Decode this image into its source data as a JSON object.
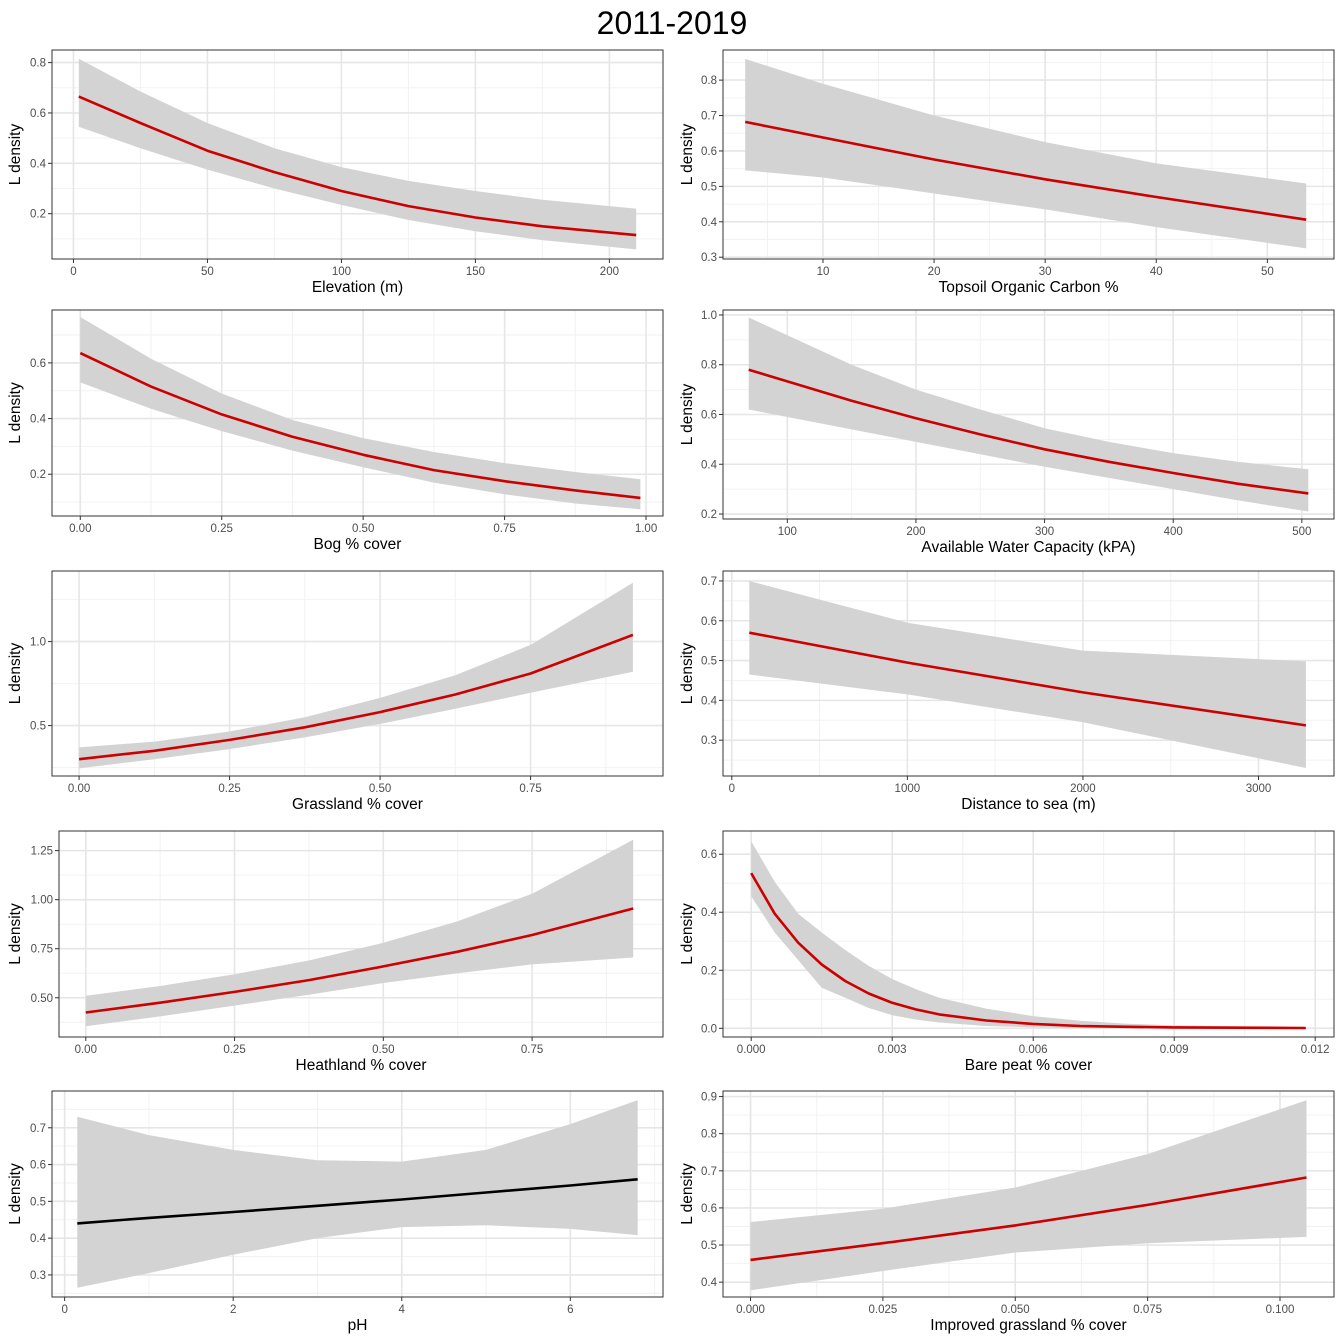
{
  "title": "2011-2019",
  "colors": {
    "line_red": "#cc0000",
    "line_black": "#000000",
    "ribbon": "#d3d3d3",
    "grid_major": "#e6e6e6",
    "grid_minor": "#f2f2f2",
    "panel_border": "#333333",
    "tick_text": "#4d4d4d"
  },
  "chart_data": [
    {
      "type": "line",
      "xlabel": "Elevation (m)",
      "ylabel": "L density",
      "xlim": [
        -8,
        220
      ],
      "ylim": [
        0.02,
        0.85
      ],
      "xticks": [
        0,
        50,
        100,
        150,
        200
      ],
      "xtick_labels": [
        "0",
        "50",
        "100",
        "150",
        "200"
      ],
      "yticks": [
        0.2,
        0.4,
        0.6,
        0.8
      ],
      "ytick_labels": [
        "0.2",
        "0.4",
        "0.6",
        "0.8"
      ],
      "line_color": "red",
      "x": [
        2,
        25,
        50,
        75,
        100,
        125,
        150,
        175,
        210
      ],
      "y": [
        0.665,
        0.56,
        0.45,
        0.365,
        0.29,
        0.23,
        0.185,
        0.15,
        0.115
      ],
      "lower": [
        0.545,
        0.46,
        0.375,
        0.3,
        0.235,
        0.175,
        0.13,
        0.095,
        0.058
      ],
      "upper": [
        0.815,
        0.685,
        0.56,
        0.46,
        0.385,
        0.33,
        0.29,
        0.255,
        0.22
      ]
    },
    {
      "type": "line",
      "xlabel": "Topsoil Organic Carbon %",
      "ylabel": "L density",
      "xlim": [
        1,
        56
      ],
      "ylim": [
        0.295,
        0.885
      ],
      "xticks": [
        10,
        20,
        30,
        40,
        50
      ],
      "xtick_labels": [
        "10",
        "20",
        "30",
        "40",
        "50"
      ],
      "yticks": [
        0.3,
        0.4,
        0.5,
        0.6,
        0.7,
        0.8
      ],
      "ytick_labels": [
        "0.3",
        "0.4",
        "0.5",
        "0.6",
        "0.7",
        "0.8"
      ],
      "line_color": "red",
      "x": [
        3,
        10,
        20,
        30,
        40,
        53.5
      ],
      "y": [
        0.682,
        0.638,
        0.576,
        0.52,
        0.47,
        0.406
      ],
      "lower": [
        0.545,
        0.525,
        0.48,
        0.435,
        0.385,
        0.325
      ],
      "upper": [
        0.86,
        0.79,
        0.7,
        0.625,
        0.565,
        0.508
      ]
    },
    {
      "type": "line",
      "xlabel": "Bog % cover",
      "ylabel": "L density",
      "xlim": [
        -0.05,
        1.03
      ],
      "ylim": [
        0.05,
        0.79
      ],
      "xticks": [
        0,
        0.25,
        0.5,
        0.75,
        1.0
      ],
      "xtick_labels": [
        "0.00",
        "0.25",
        "0.50",
        "0.75",
        "1.00"
      ],
      "yticks": [
        0.2,
        0.4,
        0.6
      ],
      "ytick_labels": [
        "0.2",
        "0.4",
        "0.6"
      ],
      "line_color": "red",
      "x": [
        0,
        0.125,
        0.25,
        0.375,
        0.5,
        0.625,
        0.75,
        0.875,
        0.99
      ],
      "y": [
        0.635,
        0.515,
        0.415,
        0.335,
        0.27,
        0.215,
        0.175,
        0.142,
        0.115
      ],
      "lower": [
        0.53,
        0.435,
        0.355,
        0.285,
        0.225,
        0.17,
        0.128,
        0.095,
        0.074
      ],
      "upper": [
        0.765,
        0.615,
        0.49,
        0.395,
        0.33,
        0.28,
        0.24,
        0.208,
        0.182
      ]
    },
    {
      "type": "line",
      "xlabel": "Available Water Capacity (kPA)",
      "ylabel": "L density",
      "xlim": [
        50,
        525
      ],
      "ylim": [
        0.18,
        1.02
      ],
      "xticks": [
        100,
        200,
        300,
        400,
        500
      ],
      "xtick_labels": [
        "100",
        "200",
        "300",
        "400",
        "500"
      ],
      "yticks": [
        0.2,
        0.4,
        0.6,
        0.8,
        1.0
      ],
      "ytick_labels": [
        "0.2",
        "0.4",
        "0.6",
        "0.8",
        "1.0"
      ],
      "line_color": "red",
      "x": [
        70,
        150,
        200,
        250,
        300,
        350,
        400,
        450,
        505
      ],
      "y": [
        0.78,
        0.655,
        0.585,
        0.52,
        0.46,
        0.41,
        0.365,
        0.322,
        0.283
      ],
      "lower": [
        0.62,
        0.54,
        0.49,
        0.44,
        0.39,
        0.345,
        0.3,
        0.255,
        0.21
      ],
      "upper": [
        0.99,
        0.8,
        0.7,
        0.62,
        0.545,
        0.49,
        0.445,
        0.41,
        0.38
      ]
    },
    {
      "type": "line",
      "xlabel": "Grassland % cover",
      "ylabel": "L density",
      "xlim": [
        -0.045,
        0.97
      ],
      "ylim": [
        0.2,
        1.42
      ],
      "xticks": [
        0,
        0.25,
        0.5,
        0.75
      ],
      "xtick_labels": [
        "0.00",
        "0.25",
        "0.50",
        "0.75"
      ],
      "yticks": [
        0.5,
        1.0
      ],
      "ytick_labels": [
        "0.5",
        "1.0"
      ],
      "line_color": "red",
      "x": [
        0,
        0.125,
        0.25,
        0.375,
        0.5,
        0.625,
        0.75,
        0.92
      ],
      "y": [
        0.3,
        0.35,
        0.415,
        0.49,
        0.58,
        0.685,
        0.81,
        1.04
      ],
      "lower": [
        0.245,
        0.3,
        0.36,
        0.43,
        0.51,
        0.6,
        0.695,
        0.82
      ],
      "upper": [
        0.37,
        0.405,
        0.465,
        0.55,
        0.665,
        0.8,
        0.98,
        1.35
      ]
    },
    {
      "type": "line",
      "xlabel": "Distance to sea (m)",
      "ylabel": "L density",
      "xlim": [
        -50,
        3430
      ],
      "ylim": [
        0.21,
        0.725
      ],
      "xticks": [
        0,
        1000,
        2000,
        3000
      ],
      "xtick_labels": [
        "0",
        "1000",
        "2000",
        "3000"
      ],
      "yticks": [
        0.3,
        0.4,
        0.5,
        0.6,
        0.7
      ],
      "ytick_labels": [
        "0.3",
        "0.4",
        "0.5",
        "0.6",
        "0.7"
      ],
      "line_color": "red",
      "x": [
        100,
        1000,
        2000,
        3270
      ],
      "y": [
        0.57,
        0.495,
        0.42,
        0.337
      ],
      "lower": [
        0.465,
        0.415,
        0.345,
        0.23
      ],
      "upper": [
        0.7,
        0.595,
        0.525,
        0.498
      ]
    },
    {
      "type": "line",
      "xlabel": "Heathland % cover",
      "ylabel": "L density",
      "xlim": [
        -0.045,
        0.97
      ],
      "ylim": [
        0.3,
        1.35
      ],
      "xticks": [
        0,
        0.25,
        0.5,
        0.75
      ],
      "xtick_labels": [
        "0.00",
        "0.25",
        "0.50",
        "0.75"
      ],
      "yticks": [
        0.5,
        0.75,
        1.0,
        1.25
      ],
      "ytick_labels": [
        "0.50",
        "0.75",
        "1.00",
        "1.25"
      ],
      "line_color": "red",
      "x": [
        0,
        0.125,
        0.25,
        0.375,
        0.5,
        0.625,
        0.75,
        0.92
      ],
      "y": [
        0.425,
        0.475,
        0.53,
        0.59,
        0.66,
        0.735,
        0.82,
        0.955
      ],
      "lower": [
        0.355,
        0.405,
        0.46,
        0.515,
        0.575,
        0.625,
        0.67,
        0.705
      ],
      "upper": [
        0.51,
        0.56,
        0.62,
        0.69,
        0.78,
        0.89,
        1.03,
        1.305
      ]
    },
    {
      "type": "line",
      "xlabel": "Bare peat % cover",
      "ylabel": "L density",
      "xlim": [
        -0.0006,
        0.0124
      ],
      "ylim": [
        -0.03,
        0.68
      ],
      "xticks": [
        0,
        0.003,
        0.006,
        0.009,
        0.012
      ],
      "xtick_labels": [
        "0.000",
        "0.003",
        "0.006",
        "0.009",
        "0.012"
      ],
      "yticks": [
        0,
        0.2,
        0.4,
        0.6
      ],
      "ytick_labels": [
        "0.0",
        "0.2",
        "0.4",
        "0.6"
      ],
      "line_color": "red",
      "x": [
        0,
        0.0005,
        0.001,
        0.0015,
        0.002,
        0.0025,
        0.003,
        0.0035,
        0.004,
        0.005,
        0.006,
        0.007,
        0.008,
        0.009,
        0.0118
      ],
      "y": [
        0.535,
        0.395,
        0.295,
        0.22,
        0.163,
        0.12,
        0.088,
        0.065,
        0.048,
        0.027,
        0.015,
        0.008,
        0.005,
        0.003,
        0.001
      ],
      "lower": [
        0.455,
        0.33,
        0.235,
        0.14,
        0.105,
        0.07,
        0.045,
        0.03,
        0.02,
        0.008,
        0.003,
        0.001,
        0.0,
        0.0,
        0.0
      ],
      "upper": [
        0.645,
        0.505,
        0.395,
        0.33,
        0.27,
        0.215,
        0.17,
        0.135,
        0.105,
        0.068,
        0.042,
        0.026,
        0.016,
        0.01,
        0.003
      ]
    },
    {
      "type": "line",
      "xlabel": "pH",
      "ylabel": "L density",
      "xlim": [
        -0.15,
        7.1
      ],
      "ylim": [
        0.24,
        0.8
      ],
      "xticks": [
        0,
        2,
        4,
        6
      ],
      "xtick_labels": [
        "0",
        "2",
        "4",
        "6"
      ],
      "yticks": [
        0.3,
        0.4,
        0.5,
        0.6,
        0.7
      ],
      "ytick_labels": [
        "0.3",
        "0.4",
        "0.5",
        "0.6",
        "0.7"
      ],
      "line_color": "black",
      "x": [
        0.15,
        1,
        2,
        3,
        4,
        5,
        6,
        6.8
      ],
      "y": [
        0.44,
        0.455,
        0.471,
        0.488,
        0.505,
        0.524,
        0.543,
        0.56
      ],
      "lower": [
        0.265,
        0.305,
        0.355,
        0.4,
        0.43,
        0.435,
        0.425,
        0.408
      ],
      "upper": [
        0.73,
        0.68,
        0.64,
        0.612,
        0.608,
        0.64,
        0.71,
        0.775
      ]
    },
    {
      "type": "line",
      "xlabel": "Improved grassland % cover",
      "ylabel": "L density",
      "xlim": [
        -0.0052,
        0.1102
      ],
      "ylim": [
        0.36,
        0.915
      ],
      "xticks": [
        0,
        0.025,
        0.05,
        0.075,
        0.1
      ],
      "xtick_labels": [
        "0.000",
        "0.025",
        "0.050",
        "0.075",
        "0.100"
      ],
      "yticks": [
        0.4,
        0.5,
        0.6,
        0.7,
        0.8,
        0.9
      ],
      "ytick_labels": [
        "0.4",
        "0.5",
        "0.6",
        "0.7",
        "0.8",
        "0.9"
      ],
      "line_color": "red",
      "x": [
        0,
        0.025,
        0.05,
        0.075,
        0.105
      ],
      "y": [
        0.46,
        0.505,
        0.553,
        0.608,
        0.682
      ],
      "lower": [
        0.378,
        0.43,
        0.48,
        0.505,
        0.522
      ],
      "upper": [
        0.562,
        0.598,
        0.655,
        0.745,
        0.89
      ]
    }
  ]
}
